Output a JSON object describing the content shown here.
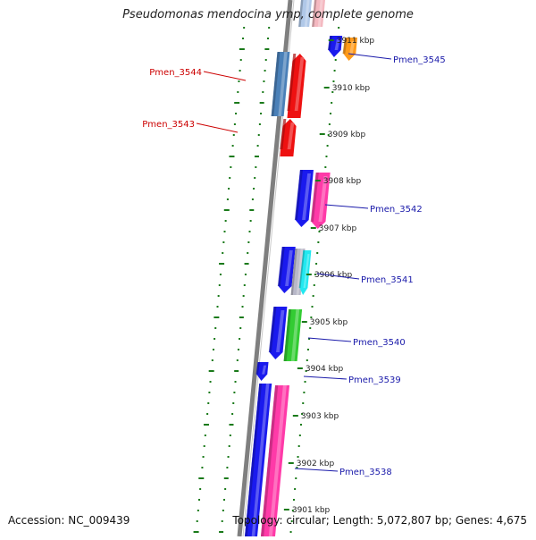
{
  "title": "Pseudomonas mendocina ymp, complete genome",
  "accession": "Accession: NC_009439",
  "topology": "Topology: circular; Length: 5,072,807 bp; Genes: 4,675",
  "colors": {
    "backbone": "#7f7f7f",
    "tick_mark": "#1a7a1a",
    "forward_label": "#1a1aaa",
    "reverse_label": "#cc0000"
  },
  "ticks": [
    {
      "label": "3911 kbp"
    },
    {
      "label": "3910 kbp"
    },
    {
      "label": "3909 kbp"
    },
    {
      "label": "3908 kbp"
    },
    {
      "label": "3907 kbp"
    },
    {
      "label": "3906 kbp"
    },
    {
      "label": "3905 kbp"
    },
    {
      "label": "3904 kbp"
    },
    {
      "label": "3903 kbp"
    },
    {
      "label": "3902 kbp"
    },
    {
      "label": "3901 kbp"
    }
  ],
  "gene_labels": [
    {
      "text": "Pmen_3545",
      "strand": "forward"
    },
    {
      "text": "Pmen_3544",
      "strand": "reverse"
    },
    {
      "text": "Pmen_3543",
      "strand": "reverse"
    },
    {
      "text": "Pmen_3542",
      "strand": "forward"
    },
    {
      "text": "Pmen_3541",
      "strand": "forward"
    },
    {
      "text": "Pmen_3540",
      "strand": "forward"
    },
    {
      "text": "Pmen_3539",
      "strand": "forward"
    },
    {
      "text": "Pmen_3538",
      "strand": "forward"
    }
  ],
  "genes": [
    {
      "name": "gene-top-lightblue",
      "color": "#b0c8e8"
    },
    {
      "name": "gene-top-pink",
      "color": "#f4b8c0"
    },
    {
      "name": "gene-3545-blue",
      "color": "#1a1aee"
    },
    {
      "name": "gene-3545-orange",
      "color": "#ff9a1a"
    },
    {
      "name": "gene-3544-steelblue",
      "color": "#4a80b8"
    },
    {
      "name": "gene-3544-red",
      "color": "#ee1111"
    },
    {
      "name": "gene-3543-red",
      "color": "#ee1111"
    },
    {
      "name": "gene-3542-blue",
      "color": "#1a1aee"
    },
    {
      "name": "gene-3542-pink",
      "color": "#ff3aa8"
    },
    {
      "name": "gene-3541-blue",
      "color": "#1a1aee"
    },
    {
      "name": "gene-3541-gray",
      "color": "#b8b8c8"
    },
    {
      "name": "gene-3541-cyan",
      "color": "#22e8f0"
    },
    {
      "name": "gene-3540-blue",
      "color": "#1a1aee"
    },
    {
      "name": "gene-3540-green",
      "color": "#33cc33"
    },
    {
      "name": "gene-3539-blue",
      "color": "#1a1aee"
    },
    {
      "name": "gene-3538-blue",
      "color": "#1a1aee"
    },
    {
      "name": "gene-3538-pink",
      "color": "#ff3aa8"
    }
  ]
}
